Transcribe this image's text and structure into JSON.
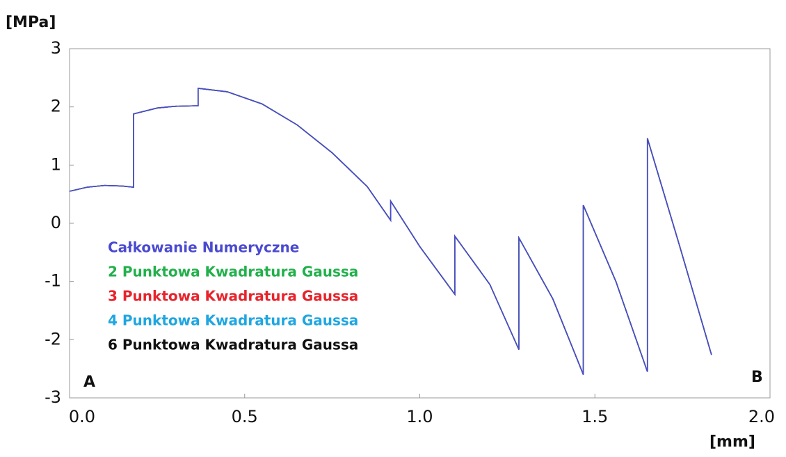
{
  "chart_data": {
    "type": "line",
    "ylabel": "[MPa]",
    "xlabel": "[mm]",
    "annotations": [
      "A",
      "B"
    ],
    "x": [
      0,
      0.05,
      0.1,
      0.15,
      0.183,
      0.183,
      0.25,
      0.3,
      0.367,
      0.367,
      0.45,
      0.55,
      0.65,
      0.75,
      0.85,
      0.917,
      0.917,
      1.0,
      1.1,
      1.1,
      1.2,
      1.283,
      1.283,
      1.38,
      1.467,
      1.467,
      1.56,
      1.65,
      1.65,
      1.74,
      1.833
    ],
    "series": [
      {
        "name": "Całkowanie Numeryczne",
        "color": "#4a4ad0",
        "values": [
          0.55,
          0.62,
          0.65,
          0.64,
          0.62,
          1.88,
          1.98,
          2.01,
          2.02,
          2.32,
          2.26,
          2.05,
          1.69,
          1.21,
          0.63,
          0.05,
          0.38,
          -0.4,
          -1.22,
          -0.22,
          -1.05,
          -2.17,
          -0.25,
          -1.3,
          -2.6,
          0.31,
          -1.0,
          -2.55,
          1.46,
          -0.35,
          -2.26
        ]
      },
      {
        "name": "2 Punktowa Kwadratura Gaussa",
        "color": "#22b04b",
        "values": [
          0.55,
          0.62,
          0.65,
          0.64,
          0.62,
          1.88,
          1.98,
          2.01,
          2.02,
          2.32,
          2.26,
          2.05,
          1.69,
          1.21,
          0.63,
          0.05,
          0.38,
          -0.4,
          -1.22,
          -0.22,
          -1.05,
          -2.17,
          -0.25,
          -1.3,
          -2.6,
          0.31,
          -1.0,
          -2.55,
          1.46,
          -0.35,
          -2.26
        ]
      },
      {
        "name": "3 Punktowa Kwadratura Gaussa",
        "color": "#e8232b",
        "values": [
          0.55,
          0.62,
          0.65,
          0.64,
          0.62,
          1.88,
          1.98,
          2.01,
          2.02,
          2.32,
          2.26,
          2.05,
          1.69,
          1.21,
          0.63,
          0.05,
          0.38,
          -0.4,
          -1.22,
          -0.22,
          -1.05,
          -2.17,
          -0.25,
          -1.3,
          -2.6,
          0.31,
          -1.0,
          -2.55,
          1.46,
          -0.35,
          -2.26
        ]
      },
      {
        "name": "4 Punktowa Kwadratura Gaussa",
        "color": "#1ea6e0",
        "values": [
          0.55,
          0.62,
          0.65,
          0.64,
          0.62,
          1.88,
          1.98,
          2.01,
          2.02,
          2.32,
          2.26,
          2.05,
          1.69,
          1.21,
          0.63,
          0.05,
          0.38,
          -0.4,
          -1.22,
          -0.22,
          -1.05,
          -2.17,
          -0.25,
          -1.3,
          -2.6,
          0.31,
          -1.0,
          -2.55,
          1.46,
          -0.35,
          -2.26
        ]
      },
      {
        "name": "6 Punktowa Kwadratura Gaussa",
        "color": "#111111",
        "values": [
          0.55,
          0.62,
          0.65,
          0.64,
          0.62,
          1.88,
          1.98,
          2.01,
          2.02,
          2.32,
          2.26,
          2.05,
          1.69,
          1.21,
          0.63,
          0.05,
          0.38,
          -0.4,
          -1.22,
          -0.22,
          -1.05,
          -2.17,
          -0.25,
          -1.3,
          -2.6,
          0.31,
          -1.0,
          -2.55,
          1.46,
          -0.35,
          -2.26
        ]
      }
    ],
    "xlim": [
      0,
      2
    ],
    "xticks": [
      {
        "value": 0,
        "label": "0.0"
      },
      0.5,
      {
        "value": 1,
        "label": "1.0"
      },
      1.5,
      {
        "value": 2,
        "label": "2.0"
      }
    ],
    "ylim": [
      -3,
      3
    ],
    "yticks": [
      -3,
      -2,
      -1,
      0,
      1,
      2,
      3
    ],
    "grid": false
  }
}
